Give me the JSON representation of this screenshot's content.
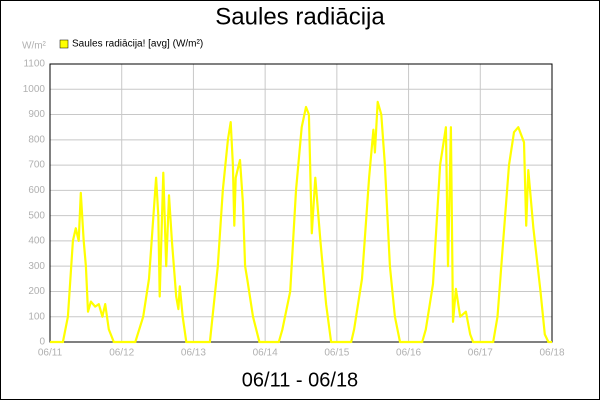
{
  "chart_data": {
    "type": "line",
    "title": "Saules radiācija",
    "y_label": "W/m²",
    "subtitle": "06/11 - 06/18",
    "grid": true,
    "legend": "top-left",
    "xlim": [
      0,
      7
    ],
    "xticks": [
      {
        "value": 0,
        "label": "06/11"
      },
      {
        "value": 1,
        "label": "06/12"
      },
      {
        "value": 2,
        "label": "06/13"
      },
      {
        "value": 3,
        "label": "06/14"
      },
      {
        "value": 4,
        "label": "06/15"
      },
      {
        "value": 5,
        "label": "06/16"
      },
      {
        "value": 6,
        "label": "06/17"
      },
      {
        "value": 7,
        "label": "06/18"
      }
    ],
    "ylim": [
      0,
      1100
    ],
    "yticks": [
      0,
      100,
      200,
      300,
      400,
      500,
      600,
      700,
      800,
      900,
      1000,
      1100
    ],
    "x": [
      0,
      0.18,
      0.25,
      0.32,
      0.36,
      0.4,
      0.43,
      0.47,
      0.5,
      0.53,
      0.57,
      0.63,
      0.68,
      0.73,
      0.77,
      0.82,
      0.89,
      1.19,
      1.3,
      1.38,
      1.48,
      1.51,
      1.53,
      1.58,
      1.62,
      1.66,
      1.7,
      1.76,
      1.79,
      1.81,
      1.85,
      1.9,
      2.23,
      2.34,
      2.41,
      2.48,
      2.52,
      2.55,
      2.57,
      2.59,
      2.65,
      2.69,
      2.72,
      2.75,
      2.83,
      2.92,
      3.19,
      3.24,
      3.35,
      3.43,
      3.51,
      3.57,
      3.61,
      3.65,
      3.7,
      3.77,
      3.85,
      3.92,
      4.2,
      4.24,
      4.35,
      4.45,
      4.51,
      4.53,
      4.57,
      4.62,
      4.67,
      4.74,
      4.81,
      4.88,
      5.19,
      5.24,
      5.34,
      5.44,
      5.52,
      5.55,
      5.59,
      5.62,
      5.66,
      5.72,
      5.8,
      5.86,
      5.9,
      6.18,
      6.24,
      6.32,
      6.4,
      6.47,
      6.53,
      6.61,
      6.64,
      6.67,
      6.74,
      6.84,
      6.9,
      6.95,
      7
    ],
    "series": [
      {
        "name": "Saules radiācija! [avg] (W/m²)",
        "color": "#ffff00",
        "values": [
          0,
          0,
          100,
          400,
          450,
          400,
          590,
          400,
          300,
          120,
          160,
          140,
          150,
          100,
          150,
          50,
          0,
          0,
          100,
          250,
          650,
          500,
          180,
          670,
          300,
          580,
          400,
          180,
          130,
          220,
          100,
          0,
          0,
          300,
          600,
          800,
          870,
          700,
          460,
          650,
          720,
          550,
          300,
          250,
          100,
          0,
          0,
          50,
          200,
          600,
          850,
          930,
          900,
          430,
          650,
          400,
          150,
          0,
          0,
          50,
          250,
          650,
          840,
          750,
          950,
          900,
          700,
          300,
          100,
          0,
          0,
          50,
          230,
          700,
          850,
          300,
          850,
          80,
          210,
          100,
          120,
          30,
          0,
          0,
          100,
          400,
          700,
          830,
          850,
          790,
          460,
          680,
          450,
          200,
          30,
          0,
          0
        ]
      }
    ]
  }
}
